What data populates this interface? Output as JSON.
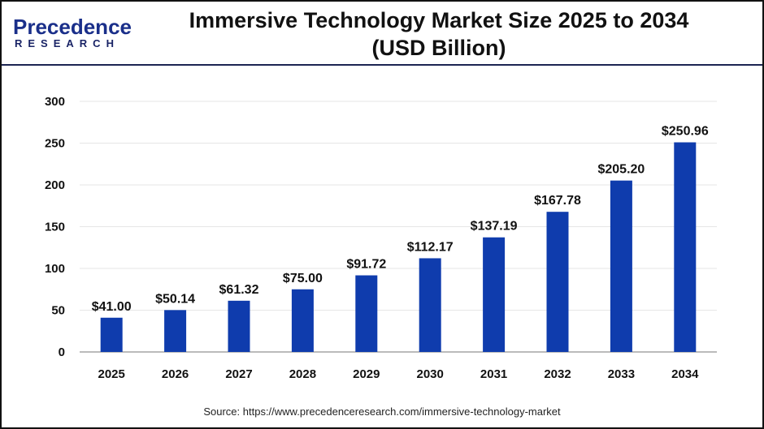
{
  "logo": {
    "line1": "Precedence",
    "line2": "RESEARCH"
  },
  "colors": {
    "bar": "#0f3cad",
    "grid": "#e6e6e6",
    "axis": "#bbbbbb"
  },
  "chart_data": {
    "type": "bar",
    "title": "Immersive Technology Market Size 2025 to 2034 (USD Billion)",
    "title_lines": [
      "Immersive Technology Market Size 2025 to 2034",
      "(USD Billion)"
    ],
    "categories": [
      "2025",
      "2026",
      "2027",
      "2028",
      "2029",
      "2030",
      "2031",
      "2032",
      "2033",
      "2034"
    ],
    "values": [
      41.0,
      50.14,
      61.32,
      75.0,
      91.72,
      112.17,
      137.19,
      167.78,
      205.2,
      250.96
    ],
    "data_labels": [
      "$41.00",
      "$50.14",
      "$61.32",
      "$75.00",
      "$91.72",
      "$112.17",
      "$137.19",
      "$167.78",
      "$205.20",
      "$250.96"
    ],
    "yticks": [
      0,
      50,
      100,
      150,
      200,
      250,
      300
    ],
    "ylim": [
      0,
      300
    ],
    "grid": true,
    "xlabel": "",
    "ylabel": ""
  },
  "source": "Source: https://www.precedenceresearch.com/immersive-technology-market"
}
